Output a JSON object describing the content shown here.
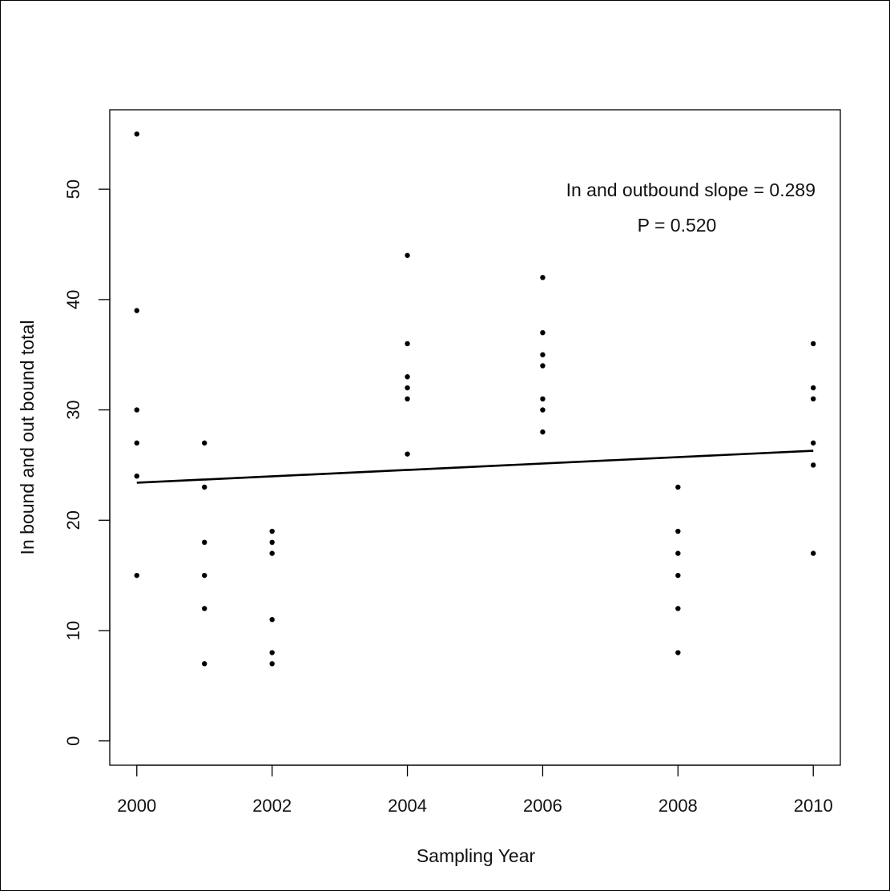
{
  "chart_data": {
    "type": "scatter",
    "xlabel": "Sampling Year",
    "ylabel": "In bound and out bound total",
    "xlim": [
      1999.6,
      2010.4
    ],
    "ylim": [
      -2.2,
      57.2
    ],
    "xticks": [
      2000,
      2002,
      2004,
      2006,
      2008,
      2010
    ],
    "yticks": [
      0,
      10,
      20,
      30,
      40,
      50
    ],
    "grid": false,
    "points": [
      [
        2000,
        55
      ],
      [
        2000,
        39
      ],
      [
        2000,
        30
      ],
      [
        2000,
        27
      ],
      [
        2000,
        24
      ],
      [
        2000,
        15
      ],
      [
        2001,
        27
      ],
      [
        2001,
        23
      ],
      [
        2001,
        18
      ],
      [
        2001,
        15
      ],
      [
        2001,
        12
      ],
      [
        2001,
        7
      ],
      [
        2002,
        19
      ],
      [
        2002,
        18
      ],
      [
        2002,
        17
      ],
      [
        2002,
        11
      ],
      [
        2002,
        8
      ],
      [
        2002,
        7
      ],
      [
        2004,
        44
      ],
      [
        2004,
        36
      ],
      [
        2004,
        33
      ],
      [
        2004,
        32
      ],
      [
        2004,
        31
      ],
      [
        2004,
        26
      ],
      [
        2006,
        42
      ],
      [
        2006,
        37
      ],
      [
        2006,
        35
      ],
      [
        2006,
        34
      ],
      [
        2006,
        31
      ],
      [
        2006,
        30
      ],
      [
        2006,
        28
      ],
      [
        2008,
        23
      ],
      [
        2008,
        19
      ],
      [
        2008,
        17
      ],
      [
        2008,
        15
      ],
      [
        2008,
        12
      ],
      [
        2008,
        8
      ],
      [
        2010,
        36
      ],
      [
        2010,
        32
      ],
      [
        2010,
        31
      ],
      [
        2010,
        27
      ],
      [
        2010,
        25
      ],
      [
        2010,
        17
      ]
    ],
    "trendline": {
      "x": [
        2000,
        2010
      ],
      "y": [
        23.4,
        26.3
      ]
    },
    "annotations": [
      "In and outbound slope = 0.289",
      "P = 0.520"
    ]
  }
}
